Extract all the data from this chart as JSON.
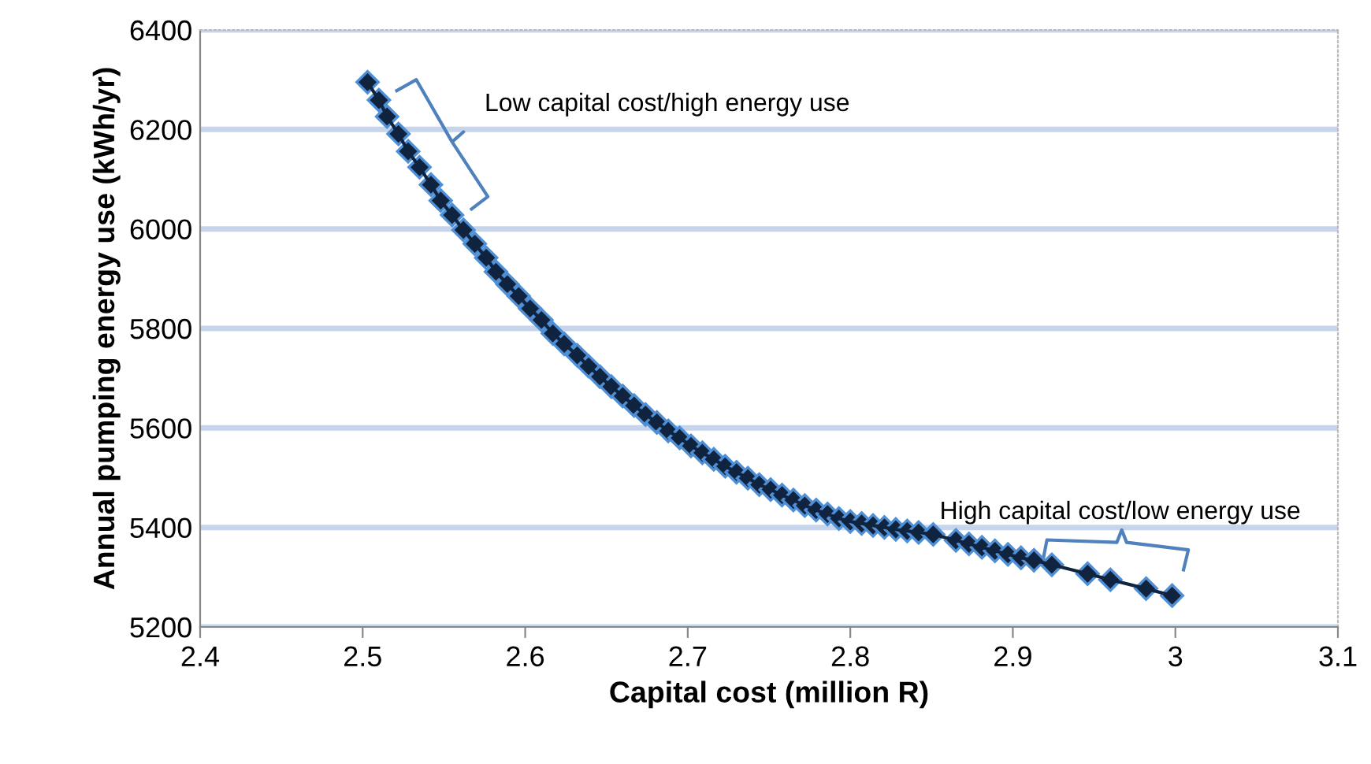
{
  "chart_data": {
    "type": "line",
    "xlabel": "Capital cost (million R)",
    "ylabel": "Annual pumping energy use (kWh/yr)",
    "x": [
      2.503,
      2.51,
      2.515,
      2.522,
      2.528,
      2.535,
      2.542,
      2.548,
      2.555,
      2.562,
      2.569,
      2.576,
      2.582,
      2.589,
      2.596,
      2.603,
      2.61,
      2.617,
      2.624,
      2.632,
      2.639,
      2.646,
      2.653,
      2.66,
      2.667,
      2.674,
      2.681,
      2.688,
      2.695,
      2.702,
      2.709,
      2.716,
      2.723,
      2.73,
      2.737,
      2.744,
      2.751,
      2.758,
      2.765,
      2.772,
      2.779,
      2.786,
      2.793,
      2.8,
      2.807,
      2.814,
      2.821,
      2.828,
      2.835,
      2.842,
      2.851,
      2.865,
      2.873,
      2.881,
      2.889,
      2.897,
      2.905,
      2.913,
      2.924,
      2.946,
      2.96,
      2.982,
      2.998
    ],
    "series": [
      {
        "color": "#10233f",
        "values": [
          6295,
          6259,
          6226,
          6191,
          6156,
          6124,
          6089,
          6057,
          6028,
          5998,
          5970,
          5942,
          5914,
          5889,
          5865,
          5840,
          5817,
          5790,
          5769,
          5746,
          5724,
          5703,
          5683,
          5664,
          5645,
          5627,
          5611,
          5594,
          5580,
          5564,
          5550,
          5537,
          5523,
          5511,
          5499,
          5486,
          5476,
          5465,
          5455,
          5444,
          5435,
          5427,
          5418,
          5412,
          5408,
          5404,
          5400,
          5396,
          5393,
          5390,
          5386,
          5374,
          5367,
          5360,
          5353,
          5346,
          5339,
          5334,
          5325,
          5307,
          5295,
          5277,
          5263
        ]
      }
    ],
    "marker": "diamond",
    "xlim": [
      2.4,
      3.1
    ],
    "xticks": [
      2.4,
      2.5,
      2.6,
      2.7,
      2.8,
      2.9,
      {
        "value": 3.0,
        "label": "3"
      },
      3.1
    ],
    "ylim": [
      5200,
      6400
    ],
    "yticks": [
      5200,
      5400,
      5600,
      5800,
      6000,
      6200,
      6400
    ],
    "grid": "y",
    "annotations": [
      "Low capital cost/high energy use",
      "High capital cost/low energy use"
    ]
  }
}
